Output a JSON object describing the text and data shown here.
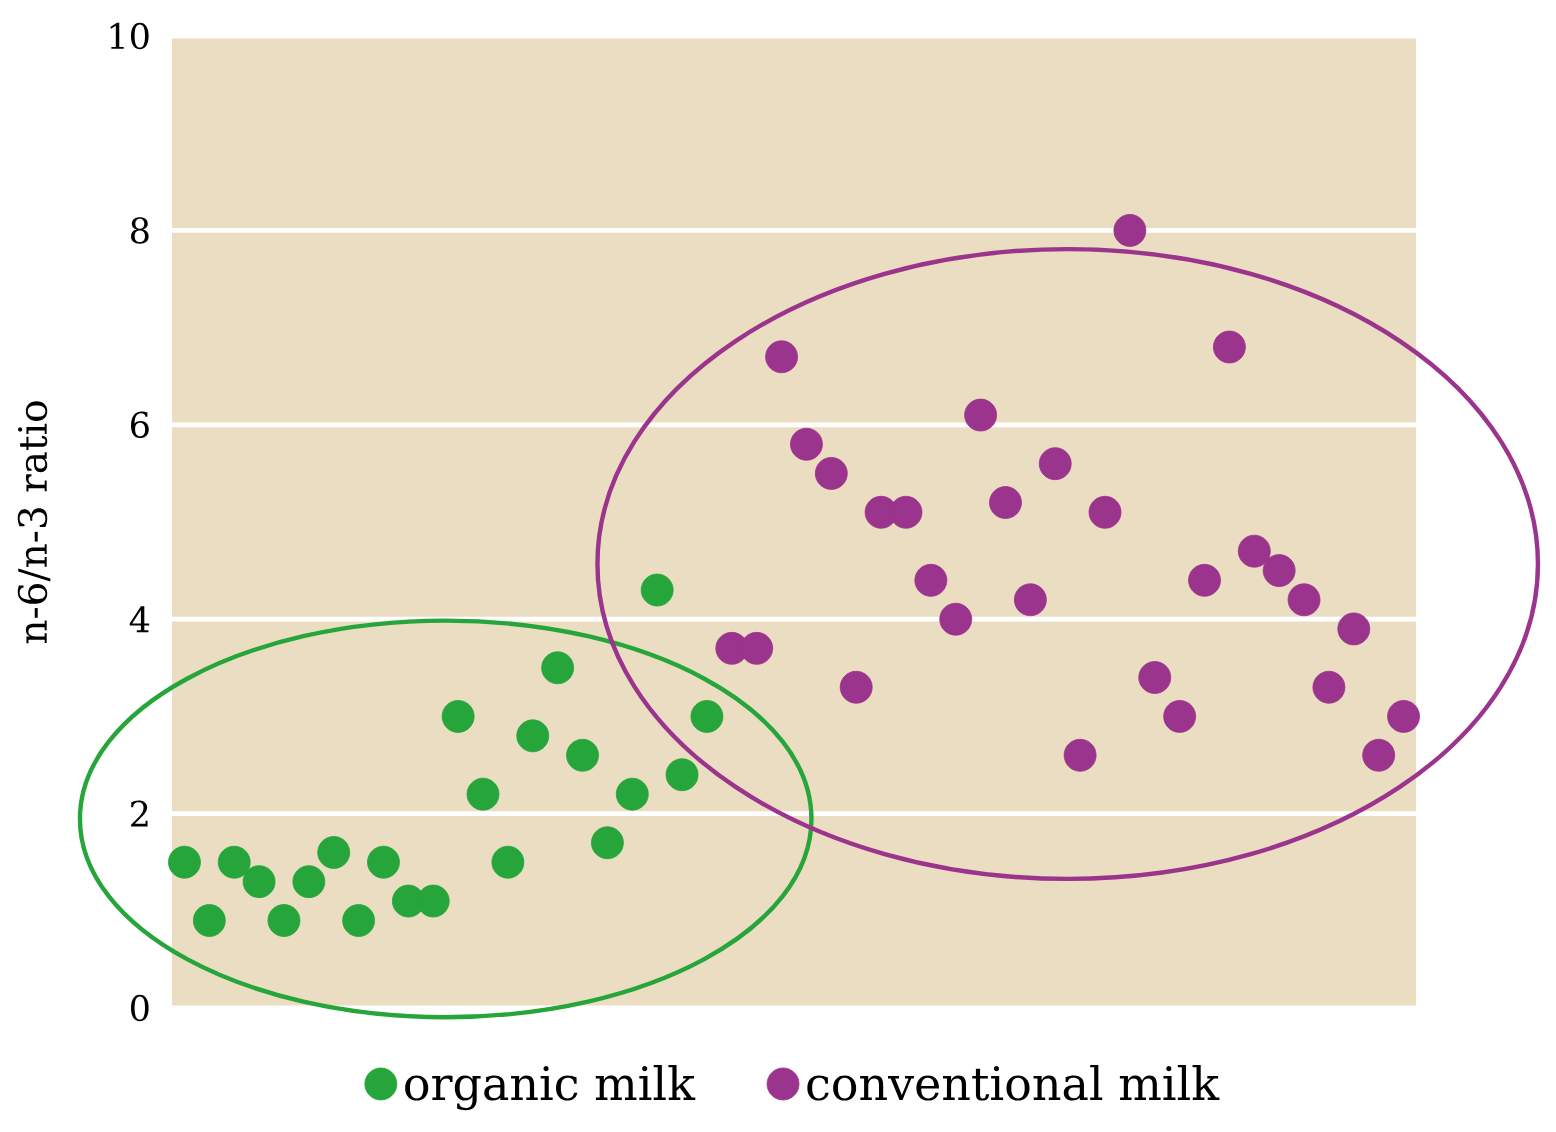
{
  "chart_data": {
    "type": "scatter",
    "ylabel": "n-6/n-3 ratio",
    "categories": [
      null,
      null,
      null,
      null,
      null,
      null,
      null,
      null,
      null,
      null,
      null,
      null,
      null,
      null,
      null,
      null,
      null,
      null,
      null,
      null,
      null,
      null,
      null,
      null,
      null,
      null,
      null,
      null,
      null,
      null,
      null,
      null,
      null,
      null,
      null,
      null,
      null,
      null,
      null,
      null,
      null,
      null,
      null,
      null,
      null,
      null,
      null,
      null,
      null,
      null
    ],
    "series": [
      {
        "name": "organic milk",
        "color": "#26a53a",
        "values": [
          1.5,
          0.9,
          1.5,
          1.3,
          0.9,
          1.3,
          1.6,
          0.9,
          1.5,
          1.1,
          1.1,
          3.0,
          2.2,
          1.5,
          2.8,
          3.5,
          2.6,
          1.7,
          2.2,
          4.3,
          2.4,
          3.0,
          null,
          null,
          null,
          null,
          null,
          null,
          null,
          null,
          null,
          null,
          null,
          null,
          null,
          null,
          null,
          null,
          null,
          null,
          null,
          null,
          null,
          null,
          null,
          null,
          null,
          null,
          null,
          null
        ]
      },
      {
        "name": "conventional milk",
        "color": "#9b348c",
        "values": [
          null,
          null,
          null,
          null,
          null,
          null,
          null,
          null,
          null,
          null,
          null,
          null,
          null,
          null,
          null,
          null,
          null,
          null,
          null,
          null,
          null,
          null,
          3.7,
          3.7,
          6.7,
          5.8,
          5.5,
          3.3,
          5.1,
          5.1,
          4.4,
          4.0,
          6.1,
          5.2,
          4.2,
          5.6,
          2.6,
          5.1,
          8.0,
          3.4,
          3.0,
          4.4,
          6.8,
          4.7,
          4.5,
          4.2,
          3.3,
          3.9,
          2.6,
          3.0
        ]
      }
    ],
    "ylim": [
      0,
      10
    ],
    "yticks": [
      0,
      2,
      4,
      6,
      8,
      10
    ],
    "grid": "y",
    "legend": "bottom",
    "marker": "circle"
  }
}
